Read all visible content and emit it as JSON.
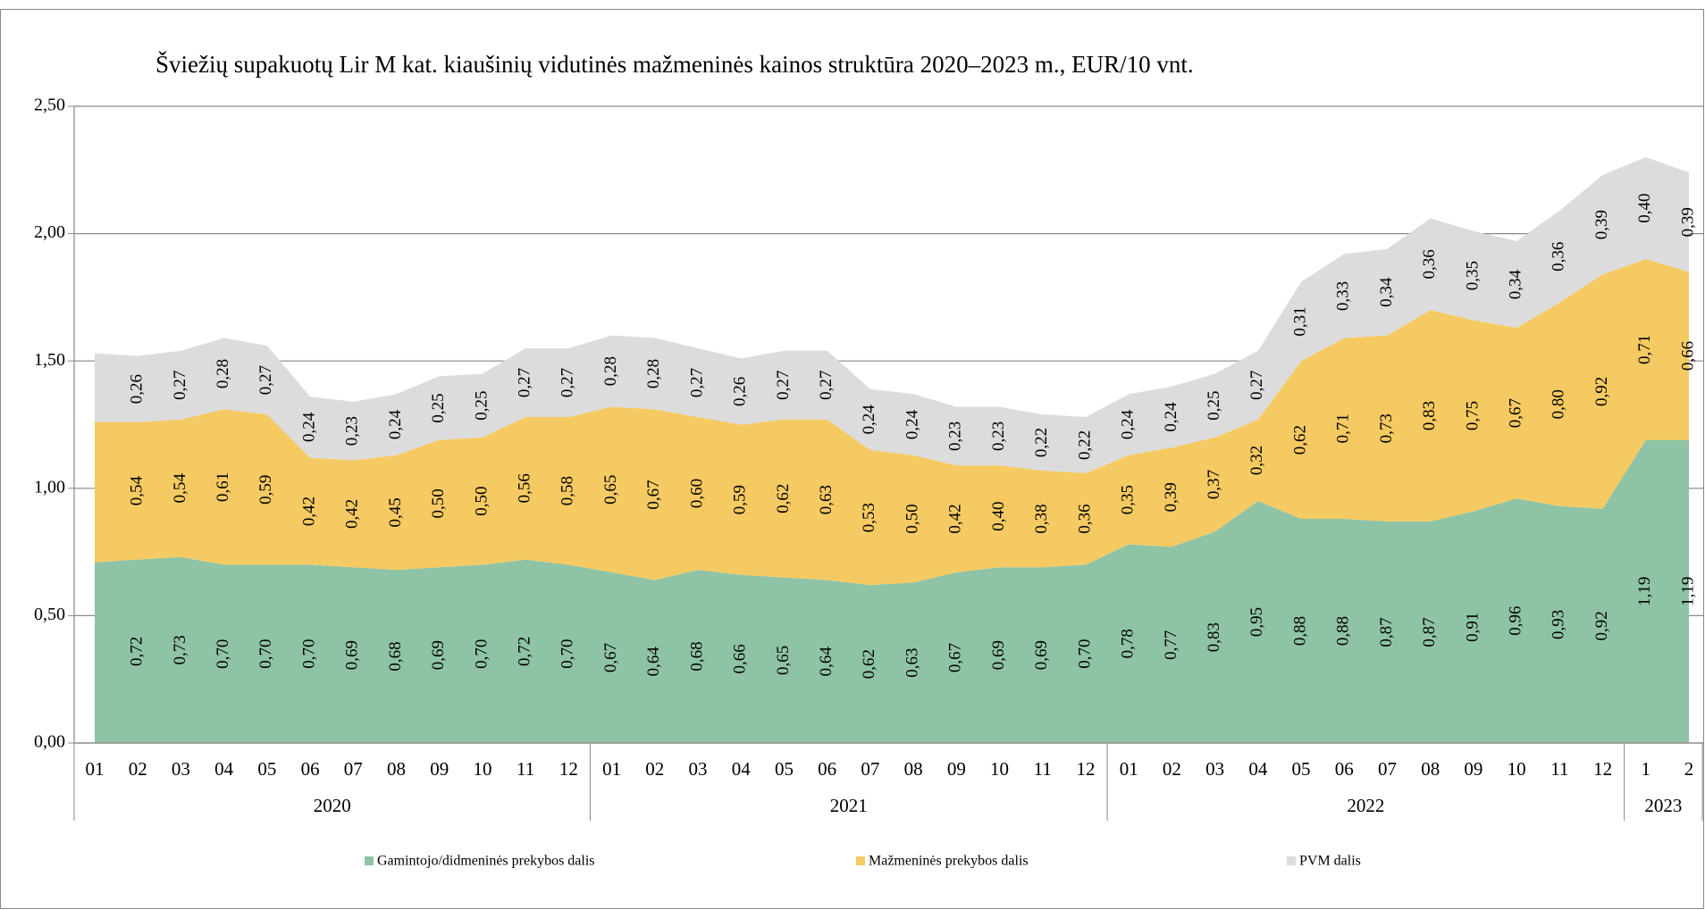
{
  "chart_data": {
    "type": "stacked_area",
    "title": "Šviežių supakuotų Lir M kat. kiaušinių vidutinės mažmeninės kainos struktūra 2020–2023 m., EUR/10 vnt.",
    "categories": [
      "01",
      "02",
      "03",
      "04",
      "05",
      "06",
      "07",
      "08",
      "09",
      "10",
      "11",
      "12",
      "01",
      "02",
      "03",
      "04",
      "05",
      "06",
      "07",
      "08",
      "09",
      "10",
      "11",
      "12",
      "01",
      "02",
      "03",
      "04",
      "05",
      "06",
      "07",
      "08",
      "09",
      "10",
      "11",
      "12",
      "1",
      "2"
    ],
    "x_groups": [
      {
        "label": "2020",
        "count": 12
      },
      {
        "label": "2021",
        "count": 12
      },
      {
        "label": "2022",
        "count": 12
      },
      {
        "label": "2023",
        "count": 2
      }
    ],
    "series": [
      {
        "name": "Gamintojo/didmeninės prekybos dalis",
        "color": "#8fc3a6",
        "values": [
          0.71,
          0.72,
          0.73,
          0.7,
          0.7,
          0.7,
          0.69,
          0.68,
          0.69,
          0.7,
          0.72,
          0.7,
          0.67,
          0.64,
          0.68,
          0.66,
          0.65,
          0.64,
          0.62,
          0.63,
          0.67,
          0.69,
          0.69,
          0.7,
          0.78,
          0.77,
          0.83,
          0.95,
          0.88,
          0.88,
          0.87,
          0.87,
          0.91,
          0.96,
          0.93,
          0.92,
          1.19,
          1.19
        ],
        "value_labels": [
          null,
          "0,72",
          "0,73",
          "0,70",
          "0,70",
          "0,70",
          "0,69",
          "0,68",
          "0,69",
          "0,70",
          "0,72",
          "0,70",
          "0,67",
          "0,64",
          "0,68",
          "0,66",
          "0,65",
          "0,64",
          "0,62",
          "0,63",
          "0,67",
          "0,69",
          "0,69",
          "0,70",
          "0,78",
          "0,77",
          "0,83",
          "0,95",
          "0,88",
          "0,88",
          "0,87",
          "0,87",
          "0,91",
          "0,96",
          "0,93",
          "0,92",
          "1,19",
          "1,19"
        ]
      },
      {
        "name": "Mažmeninės prekybos dalis",
        "color": "#f5ca62",
        "values": [
          0.55,
          0.54,
          0.54,
          0.61,
          0.59,
          0.42,
          0.42,
          0.45,
          0.5,
          0.5,
          0.56,
          0.58,
          0.65,
          0.67,
          0.6,
          0.59,
          0.62,
          0.63,
          0.53,
          0.5,
          0.42,
          0.4,
          0.38,
          0.36,
          0.35,
          0.39,
          0.37,
          0.32,
          0.62,
          0.71,
          0.73,
          0.83,
          0.75,
          0.67,
          0.8,
          0.92,
          0.71,
          0.66
        ],
        "value_labels": [
          null,
          "0,54",
          "0,54",
          "0,61",
          "0,59",
          "0,42",
          "0,42",
          "0,45",
          "0,50",
          "0,50",
          "0,56",
          "0,58",
          "0,65",
          "0,67",
          "0,60",
          "0,59",
          "0,62",
          "0,63",
          "0,53",
          "0,50",
          "0,42",
          "0,40",
          "0,38",
          "0,36",
          "0,35",
          "0,39",
          "0,37",
          "0,32",
          "0,62",
          "0,71",
          "0,73",
          "0,83",
          "0,75",
          "0,67",
          "0,80",
          "0,92",
          "0,71",
          "0,66"
        ]
      },
      {
        "name": "PVM dalis",
        "color": "#dcdcdc",
        "values": [
          0.27,
          0.26,
          0.27,
          0.28,
          0.27,
          0.24,
          0.23,
          0.24,
          0.25,
          0.25,
          0.27,
          0.27,
          0.28,
          0.28,
          0.27,
          0.26,
          0.27,
          0.27,
          0.24,
          0.24,
          0.23,
          0.23,
          0.22,
          0.22,
          0.24,
          0.24,
          0.25,
          0.27,
          0.31,
          0.33,
          0.34,
          0.36,
          0.35,
          0.34,
          0.36,
          0.39,
          0.4,
          0.39
        ],
        "value_labels": [
          null,
          "0,26",
          "0,27",
          "0,28",
          "0,27",
          "0,24",
          "0,23",
          "0,24",
          "0,25",
          "0,25",
          "0,27",
          "0,27",
          "0,28",
          "0,28",
          "0,27",
          "0,26",
          "0,27",
          "0,27",
          "0,24",
          "0,24",
          "0,23",
          "0,23",
          "0,22",
          "0,22",
          "0,24",
          "0,24",
          "0,25",
          "0,27",
          "0,31",
          "0,33",
          "0,34",
          "0,36",
          "0,35",
          "0,34",
          "0,36",
          "0,39",
          "0,40",
          "0,39"
        ]
      }
    ],
    "ylim": [
      0,
      2.5
    ],
    "yticks": [
      {
        "value": 0,
        "label": "0,00"
      },
      {
        "value": 0.5,
        "label": "0,50"
      },
      {
        "value": 1,
        "label": "1,00"
      },
      {
        "value": 1.5,
        "label": "1,50"
      },
      {
        "value": 2,
        "label": "2,00"
      },
      {
        "value": 2.5,
        "label": "2,50"
      }
    ],
    "grid": true,
    "legend": "bottom"
  }
}
